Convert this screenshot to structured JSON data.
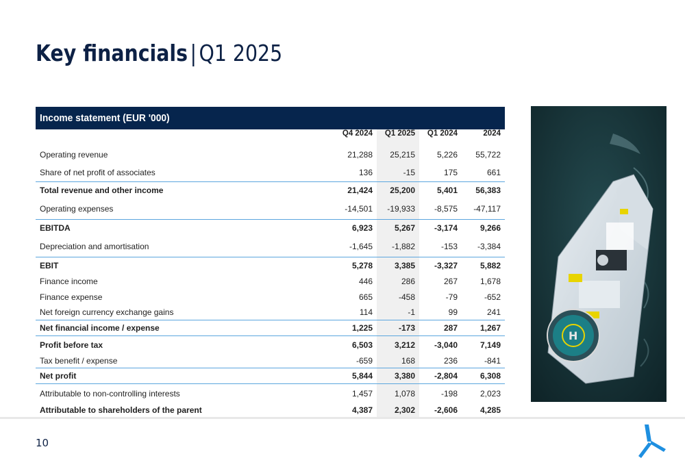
{
  "title": {
    "main": "Key financials",
    "separator": "|",
    "period": "Q1 2025"
  },
  "table": {
    "heading": "Income statement (EUR '000)",
    "columns": [
      "Q4 2024",
      "Q1 2025",
      "Q1 2024",
      "2024"
    ],
    "rows": [
      {
        "label": "Operating revenue",
        "values": [
          "21,288",
          "25,215",
          "5,226",
          "55,722"
        ],
        "bold": false
      },
      {
        "label": "Share of net profit of associates",
        "values": [
          "136",
          "-15",
          "175",
          "661"
        ],
        "bold": false
      },
      {
        "label": "Total revenue and other income",
        "values": [
          "21,424",
          "25,200",
          "5,401",
          "56,383"
        ],
        "bold": true
      },
      {
        "label": "Operating expenses",
        "values": [
          "-14,501",
          "-19,933",
          "-8,575",
          "-47,117"
        ],
        "bold": false
      },
      {
        "label": "EBITDA",
        "values": [
          "6,923",
          "5,267",
          "-3,174",
          "9,266"
        ],
        "bold": true
      },
      {
        "label": "Depreciation and amortisation",
        "values": [
          "-1,645",
          "-1,882",
          "-153",
          "-3,384"
        ],
        "bold": false
      },
      {
        "label": "EBIT",
        "values": [
          "5,278",
          "3,385",
          "-3,327",
          "5,882"
        ],
        "bold": true
      },
      {
        "label": "Finance income",
        "values": [
          "446",
          "286",
          "267",
          "1,678"
        ],
        "bold": false
      },
      {
        "label": "Finance expense",
        "values": [
          "665",
          "-458",
          "-79",
          "-652"
        ],
        "bold": false
      },
      {
        "label": "Net foreign currency exchange gains",
        "values": [
          "114",
          "-1",
          "99",
          "241"
        ],
        "bold": false
      },
      {
        "label": "Net financial income / expense",
        "values": [
          "1,225",
          "-173",
          "287",
          "1,267"
        ],
        "bold": true
      },
      {
        "label": "Profit before tax",
        "values": [
          "6,503",
          "3,212",
          "-3,040",
          "7,149"
        ],
        "bold": true
      },
      {
        "label": "Tax benefit / expense",
        "values": [
          "-659",
          "168",
          "236",
          "-841"
        ],
        "bold": false
      },
      {
        "label": "Net profit",
        "values": [
          "5,844",
          "3,380",
          "-2,804",
          "6,308"
        ],
        "bold": true
      },
      {
        "label": "Attributable to non-controlling interests",
        "values": [
          "1,457",
          "1,078",
          "-198",
          "2,023"
        ],
        "bold": false
      },
      {
        "label": "Attributable to shareholders of the parent",
        "values": [
          "4,387",
          "2,302",
          "-2,606",
          "4,285"
        ],
        "bold": true
      }
    ]
  },
  "footer": {
    "page_number": "10"
  },
  "colors": {
    "navy": "#06254d",
    "accent_line": "#5aa5de",
    "logo_blue": "#1e8fe0"
  },
  "icons": {
    "photo": "vessel-aerial-photo",
    "logo": "turbine-logo-icon"
  }
}
